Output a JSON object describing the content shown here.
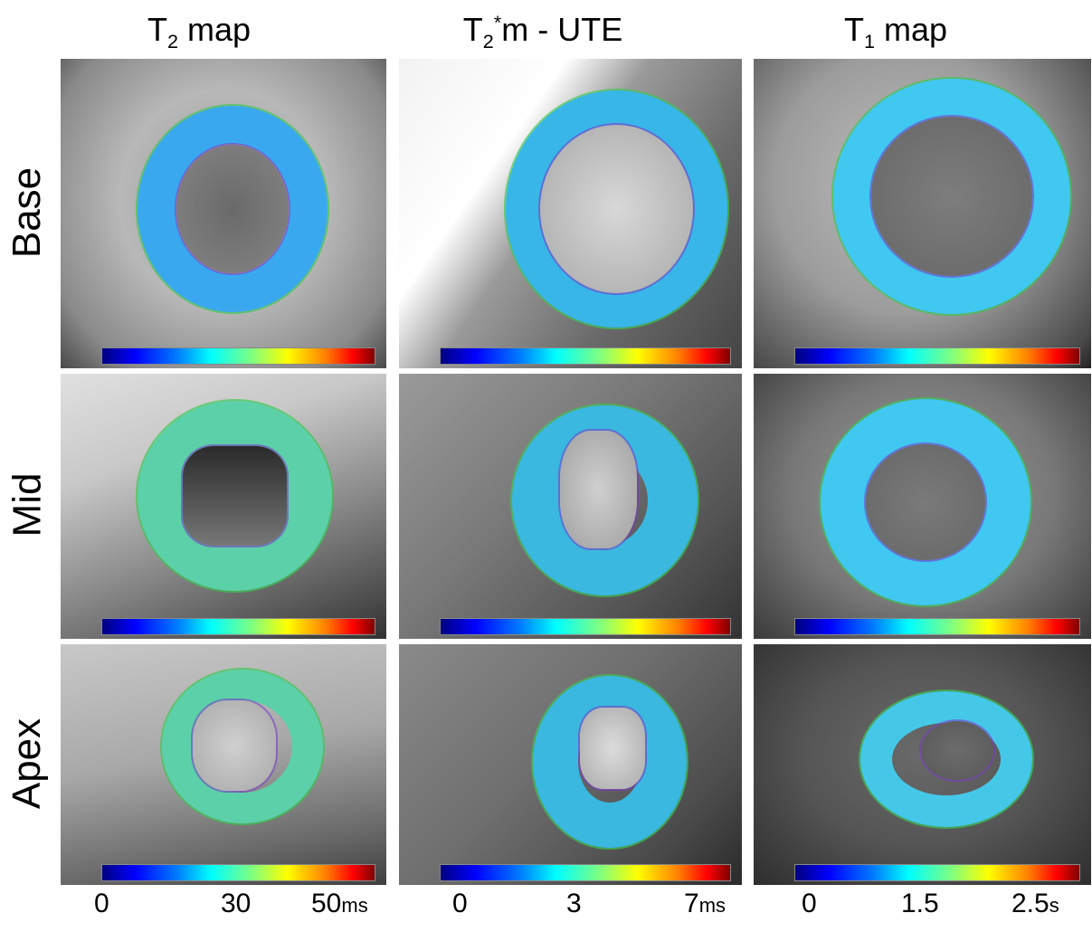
{
  "columns": [
    {
      "title_main": "T",
      "title_sub": "2",
      "title_sup": "",
      "title_rest": " map",
      "ticks": [
        "0",
        "30",
        "50"
      ],
      "unit": "ms"
    },
    {
      "title_main": "T",
      "title_sub": "2",
      "title_sup": "*",
      "title_rest": "m - UTE",
      "ticks": [
        "0",
        "3",
        "7"
      ],
      "unit": "ms"
    },
    {
      "title_main": "T",
      "title_sub": "1",
      "title_sup": "",
      "title_rest": " map",
      "ticks": [
        "0",
        "1.5",
        "2.5"
      ],
      "unit": "s"
    }
  ],
  "rows": [
    {
      "label": "Base"
    },
    {
      "label": "Mid"
    },
    {
      "label": "Apex"
    }
  ],
  "colormap": "jet",
  "colors": {
    "ring": "#38b6e8",
    "contour_outer": "#3cc850",
    "contour_inner": "#783cc8"
  }
}
